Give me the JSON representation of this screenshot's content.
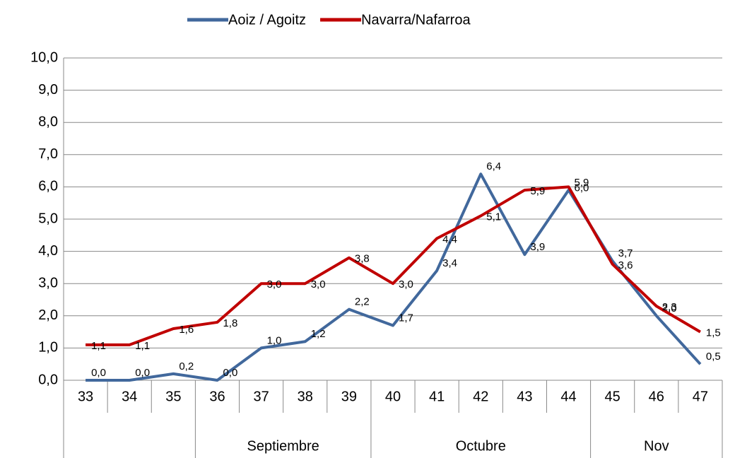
{
  "chart_data": {
    "type": "line",
    "categories": [
      "33",
      "34",
      "35",
      "36",
      "37",
      "38",
      "39",
      "40",
      "41",
      "42",
      "43",
      "44",
      "45",
      "46",
      "47"
    ],
    "groups": [
      {
        "label": null,
        "count": 3
      },
      {
        "label": "Septiembre",
        "count": 4
      },
      {
        "label": "Octubre",
        "count": 5
      },
      {
        "label": "Nov",
        "count": 3
      }
    ],
    "series": [
      {
        "name": "Aoiz / Agoitz",
        "color": "#41689c",
        "values": [
          0.0,
          0.0,
          0.2,
          0.0,
          1.0,
          1.2,
          2.2,
          1.7,
          3.4,
          6.4,
          3.9,
          5.9,
          3.7,
          2.0,
          0.5
        ],
        "value_labels": [
          "0,0",
          "0,0",
          "0,2",
          "0,0",
          "1,0",
          "1,2",
          "2,2",
          "1,7",
          "3,4",
          "6,4",
          "3,9",
          "5,9",
          "3,7",
          "2,0",
          "0,5"
        ]
      },
      {
        "name": "Navarra/Nafarroa",
        "color": "#c00000",
        "values": [
          1.1,
          1.1,
          1.6,
          1.8,
          3.0,
          3.0,
          3.8,
          3.0,
          4.4,
          5.1,
          5.9,
          6.0,
          3.6,
          2.3,
          1.5
        ],
        "value_labels": [
          "1,1",
          "1,1",
          "1,6",
          "1,8",
          "3,0",
          "3,0",
          "3,8",
          "3,0",
          "4,4",
          "5,1",
          "5,9",
          "6,0",
          "3,6",
          "2,3",
          "1,5"
        ]
      }
    ],
    "ylim": [
      0,
      10
    ],
    "yticks": [
      {
        "value": 0,
        "label": "0,0"
      },
      {
        "value": 1,
        "label": "1,0"
      },
      {
        "value": 2,
        "label": "2,0"
      },
      {
        "value": 3,
        "label": "3,0"
      },
      {
        "value": 4,
        "label": "4,0"
      },
      {
        "value": 5,
        "label": "5,0"
      },
      {
        "value": 6,
        "label": "6,0"
      },
      {
        "value": 7,
        "label": "7,0"
      },
      {
        "value": 8,
        "label": "8,0"
      },
      {
        "value": 9,
        "label": "9,0"
      },
      {
        "value": 10,
        "label": "10,0"
      }
    ],
    "grid": true,
    "legend": "top"
  }
}
